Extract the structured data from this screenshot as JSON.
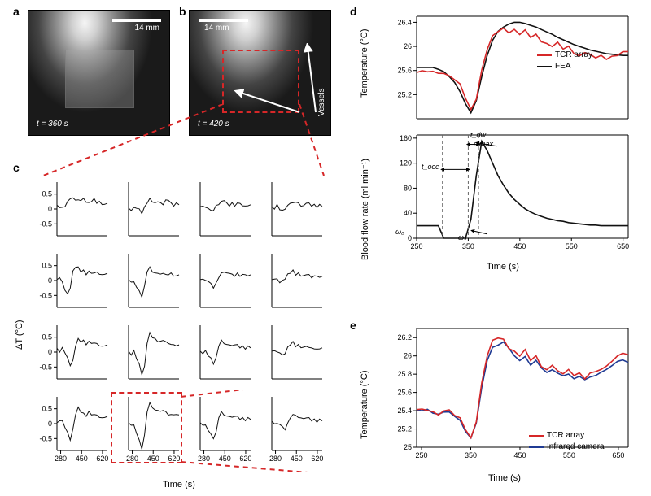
{
  "labels": {
    "a": "a",
    "b": "b",
    "c": "c",
    "d": "d",
    "e": "e",
    "scale_a": "14 mm",
    "scale_b": "14 mm",
    "t_a": "t = 360 s",
    "t_b": "t = 420 s",
    "vessels": "Vessels",
    "deltaT": "ΔT (°C)",
    "time": "Time (s)",
    "temp": "Temperature (°C)",
    "bfr": "Blood flow rate (ml min⁻¹)",
    "tcr": "TCR array",
    "fea": "FEA",
    "ircam": "Infrared camera",
    "omega0": "ω₀",
    "omegas": "ωₛ",
    "omegamax": "ωmax",
    "tocc": "t_occ",
    "tdw": "t_dw"
  },
  "colors": {
    "red": "#d62728",
    "black": "#111111",
    "blue": "#1f3a93",
    "axis": "#000000",
    "bg": "#ffffff",
    "gray": "#888888"
  },
  "panelC": {
    "xticks": [
      280,
      450,
      620
    ],
    "yticks": [
      -0.5,
      0.0,
      0.5
    ],
    "xlim": [
      250,
      660
    ],
    "ylim": [
      -0.9,
      0.9
    ],
    "cells": [
      [
        [
          0.1,
          0.05,
          0.0,
          0.1,
          0.25,
          0.4,
          0.35,
          0.3,
          0.25,
          0.3,
          0.35,
          0.28,
          0.2,
          0.25,
          0.3,
          0.2,
          0.25,
          0.2,
          0.15,
          0.2
        ],
        [
          0.0,
          -0.05,
          0.0,
          0.05,
          0.0,
          -0.1,
          0.05,
          0.2,
          0.3,
          0.25,
          0.2,
          0.3,
          0.2,
          0.15,
          0.25,
          0.3,
          0.2,
          0.15,
          0.2,
          0.15
        ],
        [
          0.05,
          0.1,
          0.0,
          0.05,
          -0.05,
          0.0,
          0.1,
          0.15,
          0.2,
          0.3,
          0.2,
          0.15,
          0.2,
          0.1,
          0.15,
          0.2,
          0.1,
          0.15,
          0.1,
          0.15
        ],
        [
          0.05,
          0.0,
          0.1,
          0.0,
          -0.05,
          0.05,
          0.1,
          0.2,
          0.15,
          0.25,
          0.2,
          0.15,
          0.1,
          0.2,
          0.15,
          0.1,
          0.15,
          0.1,
          0.15,
          0.1
        ]
      ],
      [
        [
          0.0,
          0.1,
          -0.1,
          -0.3,
          -0.45,
          -0.2,
          0.3,
          0.45,
          0.4,
          0.3,
          0.35,
          0.25,
          0.3,
          0.25,
          0.2,
          0.3,
          0.2,
          0.25,
          0.2,
          0.25
        ],
        [
          0.0,
          -0.05,
          -0.1,
          -0.2,
          -0.35,
          -0.5,
          -0.2,
          0.3,
          0.4,
          0.3,
          0.25,
          0.3,
          0.2,
          0.25,
          0.15,
          0.2,
          0.25,
          0.2,
          0.15,
          0.2
        ],
        [
          0.0,
          0.05,
          -0.05,
          0.0,
          -0.1,
          -0.2,
          -0.1,
          0.1,
          0.2,
          0.3,
          0.25,
          0.3,
          0.2,
          0.15,
          0.2,
          0.15,
          0.2,
          0.25,
          0.15,
          0.2
        ],
        [
          0.0,
          0.05,
          0.0,
          -0.05,
          0.0,
          0.1,
          0.2,
          0.25,
          0.3,
          0.2,
          0.25,
          0.2,
          0.15,
          0.2,
          0.15,
          0.1,
          0.15,
          0.2,
          0.1,
          0.15
        ]
      ],
      [
        [
          0.1,
          0.0,
          0.1,
          0.0,
          -0.2,
          -0.4,
          -0.3,
          0.2,
          0.4,
          0.35,
          0.4,
          0.3,
          0.35,
          0.3,
          0.25,
          0.3,
          0.2,
          0.25,
          0.2,
          0.25
        ],
        [
          0.0,
          -0.1,
          0.0,
          -0.2,
          -0.4,
          -0.7,
          -0.5,
          0.3,
          0.6,
          0.5,
          0.45,
          0.4,
          0.35,
          0.4,
          0.3,
          0.3,
          0.25,
          0.3,
          0.2,
          0.25
        ],
        [
          0.0,
          -0.05,
          0.0,
          -0.1,
          -0.2,
          -0.35,
          -0.2,
          0.2,
          0.35,
          0.3,
          0.25,
          0.3,
          0.2,
          0.25,
          0.2,
          0.15,
          0.2,
          0.15,
          0.2,
          0.15
        ],
        [
          0.0,
          0.05,
          -0.05,
          0.0,
          -0.1,
          0.0,
          0.15,
          0.25,
          0.3,
          0.2,
          0.25,
          0.2,
          0.15,
          0.2,
          0.1,
          0.15,
          0.1,
          0.15,
          0.1,
          0.15
        ]
      ],
      [
        [
          0.0,
          0.1,
          0.05,
          -0.1,
          -0.3,
          -0.5,
          -0.2,
          0.3,
          0.5,
          0.4,
          0.35,
          0.3,
          0.4,
          0.3,
          0.25,
          0.3,
          0.2,
          0.25,
          0.2,
          0.25
        ],
        [
          0.0,
          -0.05,
          -0.1,
          -0.3,
          -0.55,
          -0.8,
          -0.4,
          0.4,
          0.65,
          0.55,
          0.45,
          0.5,
          0.4,
          0.45,
          0.35,
          0.3,
          0.3,
          0.35,
          0.3,
          0.3
        ],
        [
          0.0,
          -0.05,
          -0.1,
          -0.2,
          -0.35,
          -0.45,
          -0.3,
          0.2,
          0.35,
          0.3,
          0.25,
          0.3,
          0.2,
          0.25,
          0.2,
          0.15,
          0.2,
          0.15,
          0.2,
          0.15
        ],
        [
          0.05,
          0.0,
          -0.05,
          0.0,
          -0.1,
          -0.15,
          0.0,
          0.2,
          0.25,
          0.3,
          0.2,
          0.25,
          0.15,
          0.2,
          0.15,
          0.1,
          0.15,
          0.1,
          0.15,
          0.1
        ]
      ]
    ]
  },
  "panelD_top": {
    "xlim": [
      250,
      660
    ],
    "ylim": [
      24.8,
      26.5
    ],
    "yticks": [
      25.2,
      25.6,
      26.0,
      26.4
    ],
    "tcr": [
      25.55,
      25.6,
      25.55,
      25.6,
      25.55,
      25.58,
      25.5,
      25.45,
      25.35,
      25.15,
      24.95,
      25.15,
      25.6,
      25.95,
      26.15,
      26.25,
      26.3,
      26.25,
      26.28,
      26.2,
      26.25,
      26.15,
      26.2,
      26.1,
      26.05,
      26.0,
      26.05,
      25.95,
      26.0,
      25.9,
      25.85,
      25.9,
      25.85,
      25.8,
      25.85,
      25.8,
      25.85,
      25.85,
      25.9,
      25.9
    ],
    "fea": [
      25.65,
      25.65,
      25.65,
      25.65,
      25.62,
      25.58,
      25.5,
      25.4,
      25.25,
      25.05,
      24.9,
      25.1,
      25.5,
      25.85,
      26.1,
      26.25,
      26.32,
      26.37,
      26.4,
      26.4,
      26.38,
      26.35,
      26.32,
      26.28,
      26.24,
      26.2,
      26.15,
      26.11,
      26.07,
      26.03,
      26.0,
      25.97,
      25.94,
      25.92,
      25.9,
      25.88,
      25.87,
      25.86,
      25.85,
      25.85
    ]
  },
  "panelD_bot": {
    "xlim": [
      250,
      660
    ],
    "ylim": [
      0,
      165
    ],
    "yticks": [
      0,
      40,
      80,
      120,
      160
    ],
    "flow": [
      20,
      20,
      20,
      20,
      20,
      0,
      0,
      0,
      0,
      0,
      30,
      100,
      155,
      140,
      120,
      100,
      85,
      72,
      62,
      54,
      47,
      42,
      38,
      35,
      32,
      30,
      28,
      27,
      25,
      24,
      23,
      22,
      21,
      21,
      20,
      20,
      20,
      20,
      20,
      20
    ]
  },
  "panelE": {
    "xlim": [
      240,
      670
    ],
    "ylim": [
      25.0,
      26.3
    ],
    "xticks": [
      250,
      350,
      450,
      550,
      650
    ],
    "yticks": [
      25.0,
      25.2,
      25.4,
      25.6,
      25.8,
      26.0,
      26.2
    ],
    "tcr": [
      25.4,
      25.42,
      25.38,
      25.4,
      25.35,
      25.42,
      25.4,
      25.35,
      25.3,
      25.2,
      25.1,
      25.3,
      25.7,
      26.0,
      26.15,
      26.2,
      26.18,
      26.1,
      26.05,
      26.0,
      26.05,
      25.95,
      26.0,
      25.9,
      25.85,
      25.9,
      25.82,
      25.8,
      25.85,
      25.8,
      25.82,
      25.75,
      25.8,
      25.82,
      25.85,
      25.9,
      25.95,
      26.0,
      26.02,
      26.0
    ],
    "ir": [
      25.4,
      25.4,
      25.4,
      25.38,
      25.36,
      25.4,
      25.38,
      25.34,
      25.28,
      25.18,
      25.1,
      25.28,
      25.65,
      25.95,
      26.08,
      26.12,
      26.15,
      26.1,
      26.0,
      25.95,
      25.98,
      25.9,
      25.95,
      25.88,
      25.82,
      25.85,
      25.8,
      25.78,
      25.8,
      25.76,
      25.78,
      25.74,
      25.76,
      25.78,
      25.82,
      25.86,
      25.9,
      25.94,
      25.95,
      25.92
    ]
  }
}
